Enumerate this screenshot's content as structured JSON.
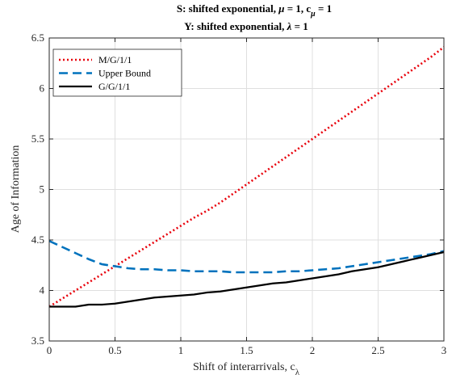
{
  "chart_data": {
    "type": "line",
    "title_line1": {
      "text": "S: shifted exponential, ",
      "mu": "μ",
      "eq1": " = 1, c",
      "sub": "μ",
      "eq2": " = 1"
    },
    "title_line2": {
      "text": "Y: shifted exponential, ",
      "lambda": "λ",
      "eq": " = 1"
    },
    "xlabel": {
      "text": "Shift of interarrivals, c",
      "sub": "λ"
    },
    "ylabel": "Age of Information",
    "xlim": [
      0,
      3
    ],
    "ylim": [
      3.5,
      6.5
    ],
    "xticks": [
      "0",
      "0.5",
      "1",
      "1.5",
      "2",
      "2.5",
      "3"
    ],
    "yticks": [
      "3.5",
      "4",
      "4.5",
      "5",
      "5.5",
      "6",
      "6.5"
    ],
    "grid": true,
    "legend_position": "top-left",
    "x": [
      0,
      0.1,
      0.2,
      0.3,
      0.4,
      0.5,
      0.6,
      0.7,
      0.8,
      0.9,
      1.0,
      1.1,
      1.2,
      1.3,
      1.4,
      1.5,
      1.6,
      1.7,
      1.8,
      1.9,
      2.0,
      2.1,
      2.2,
      2.3,
      2.4,
      2.5,
      2.6,
      2.7,
      2.8,
      2.9,
      3.0
    ],
    "series": [
      {
        "name": "M/G/1/1",
        "color": "#e8000b",
        "style": "dotted",
        "values": [
          3.84,
          3.92,
          4.0,
          4.08,
          4.16,
          4.24,
          4.32,
          4.4,
          4.48,
          4.56,
          4.64,
          4.72,
          4.79,
          4.87,
          4.96,
          5.05,
          5.14,
          5.23,
          5.32,
          5.41,
          5.5,
          5.59,
          5.68,
          5.77,
          5.86,
          5.95,
          6.04,
          6.13,
          6.22,
          6.31,
          6.41
        ]
      },
      {
        "name": "Upper Bound",
        "color": "#0072bd",
        "style": "dashed",
        "values": [
          4.49,
          4.43,
          4.37,
          4.31,
          4.26,
          4.24,
          4.22,
          4.21,
          4.21,
          4.2,
          4.2,
          4.19,
          4.19,
          4.19,
          4.18,
          4.18,
          4.18,
          4.18,
          4.19,
          4.19,
          4.2,
          4.21,
          4.22,
          4.24,
          4.26,
          4.28,
          4.3,
          4.32,
          4.34,
          4.36,
          4.39
        ]
      },
      {
        "name": "G/G/1/1",
        "color": "#000000",
        "style": "solid",
        "values": [
          3.84,
          3.84,
          3.84,
          3.86,
          3.86,
          3.87,
          3.89,
          3.91,
          3.93,
          3.94,
          3.95,
          3.96,
          3.98,
          3.99,
          4.01,
          4.03,
          4.05,
          4.07,
          4.08,
          4.1,
          4.12,
          4.14,
          4.16,
          4.19,
          4.21,
          4.23,
          4.26,
          4.29,
          4.32,
          4.35,
          4.38
        ]
      }
    ]
  }
}
